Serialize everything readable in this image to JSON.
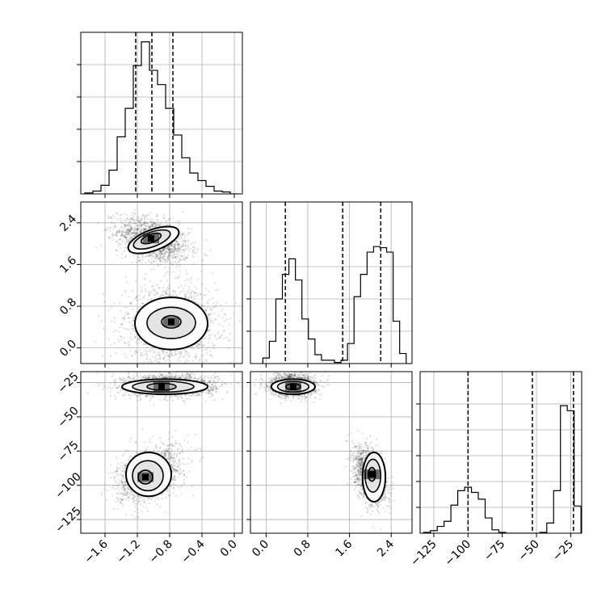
{
  "chart_data": {
    "type": "corner",
    "variables": [
      {
        "range": [
          -1.9,
          0.1
        ],
        "ticks": [
          -1.6,
          -1.2,
          -0.8,
          -0.4,
          0.0
        ],
        "tick_labels": [
          "−1.6",
          "−1.2",
          "−0.8",
          "−0.4",
          "0.0"
        ],
        "quantiles": [
          -1.22,
          -1.02,
          -0.76
        ],
        "hist_x": [
          -1.8,
          -1.7,
          -1.6,
          -1.5,
          -1.4,
          -1.3,
          -1.2,
          -1.1,
          -1.0,
          -0.9,
          -0.8,
          -0.7,
          -0.6,
          -0.5,
          -0.4,
          -0.3,
          -0.2,
          -0.1,
          0.0
        ],
        "hist_counts": [
          1,
          3,
          9,
          25,
          60,
          90,
          135,
          160,
          130,
          115,
          90,
          62,
          38,
          22,
          14,
          8,
          3,
          2,
          0
        ],
        "hist_ylim": [
          0,
          170
        ],
        "hist_grid": [
          0.2,
          0.4,
          0.6,
          0.8
        ]
      },
      {
        "range": [
          -0.3,
          2.8
        ],
        "ticks": [
          0.0,
          0.8,
          1.6,
          2.4
        ],
        "tick_labels": [
          "0.0",
          "0.8",
          "1.6",
          "2.4"
        ],
        "quantiles": [
          0.37,
          1.47,
          2.2
        ],
        "hist_x": [
          0.0,
          0.125,
          0.25,
          0.375,
          0.5,
          0.625,
          0.75,
          0.875,
          1.0,
          1.125,
          1.25,
          1.375,
          1.5,
          1.625,
          1.75,
          1.875,
          2.0,
          2.125,
          2.25,
          2.375,
          2.5,
          2.625
        ],
        "hist_counts": [
          5,
          20,
          58,
          80,
          94,
          75,
          40,
          22,
          8,
          3,
          3,
          1,
          3,
          18,
          60,
          80,
          100,
          105,
          104,
          100,
          38,
          9
        ],
        "hist_ylim": [
          0,
          145
        ],
        "hist_grid": [
          0.2,
          0.4,
          0.6
        ]
      },
      {
        "range": [
          -135,
          -17
        ],
        "ticks": [
          -125,
          -100,
          -75,
          -50,
          -25
        ],
        "tick_labels": [
          "−125",
          "−100",
          "−75",
          "−50",
          "−25"
        ],
        "quantiles": [
          -100,
          -53,
          -23
        ],
        "hist_x": [
          -130,
          -125,
          -120,
          -115,
          -110,
          -105,
          -100,
          -95,
          -90,
          -85,
          -80,
          -75,
          -70,
          -65,
          -60,
          -55,
          -50,
          -45,
          -40,
          -35,
          -30,
          -25,
          -20
        ],
        "hist_counts": [
          1,
          3,
          8,
          14,
          33,
          50,
          54,
          48,
          40,
          18,
          4,
          1,
          0,
          0,
          0,
          0,
          0,
          1,
          12,
          50,
          150,
          144,
          32
        ],
        "hist_ylim": [
          0,
          190
        ],
        "hist_grid": [
          0.16,
          0.32,
          0.48,
          0.64,
          0.8
        ]
      }
    ],
    "pairs": [
      {
        "row": 1,
        "col": 0,
        "clusters": [
          {
            "cx": -1.0,
            "cy": 2.07,
            "sx": 0.22,
            "sy": 0.22,
            "rho": -0.4,
            "n": 1600
          },
          {
            "cx": -0.78,
            "cy": 0.45,
            "sx": 0.28,
            "sy": 0.35,
            "rho": 0.0,
            "n": 1800
          }
        ],
        "contours": [
          {
            "cx": -1.0,
            "cy": 2.07,
            "rx": 0.33,
            "ry": 0.2,
            "rot": -0.35
          },
          {
            "cx": -1.02,
            "cy": 2.08,
            "rx": 0.24,
            "ry": 0.14,
            "rot": -0.35
          },
          {
            "cx": -1.03,
            "cy": 2.1,
            "rx": 0.13,
            "ry": 0.08,
            "rot": -0.35
          },
          {
            "cx": -0.78,
            "cy": 0.47,
            "rx": 0.45,
            "ry": 0.5,
            "rot": 0.0
          },
          {
            "cx": -0.78,
            "cy": 0.48,
            "rx": 0.3,
            "ry": 0.3,
            "rot": 0.0
          },
          {
            "cx": -0.78,
            "cy": 0.5,
            "rx": 0.12,
            "ry": 0.12,
            "rot": 0.0
          }
        ]
      },
      {
        "row": 2,
        "col": 0,
        "clusters": [
          {
            "cx": -0.8,
            "cy": -27,
            "sx": 0.28,
            "sy": 4,
            "rho": 0.0,
            "n": 1800
          },
          {
            "cx": -1.05,
            "cy": -92,
            "sx": 0.2,
            "sy": 10,
            "rho": 0.4,
            "n": 1600
          }
        ],
        "contours": [
          {
            "cx": -0.86,
            "cy": -28,
            "rx": 0.53,
            "ry": 5.5,
            "rot": 0.0
          },
          {
            "cx": -0.88,
            "cy": -28,
            "rx": 0.38,
            "ry": 4,
            "rot": 0.0
          },
          {
            "cx": -0.9,
            "cy": -28,
            "rx": 0.18,
            "ry": 2.5,
            "rot": 0.0
          },
          {
            "cx": -1.06,
            "cy": -92,
            "rx": 0.28,
            "ry": 16,
            "rot": 0.0
          },
          {
            "cx": -1.07,
            "cy": -93,
            "rx": 0.19,
            "ry": 11,
            "rot": 0.0
          },
          {
            "cx": -1.1,
            "cy": -94,
            "rx": 0.09,
            "ry": 5,
            "rot": 0.0
          }
        ]
      },
      {
        "row": 2,
        "col": 1,
        "clusters": [
          {
            "cx": 0.5,
            "cy": -27,
            "sx": 0.22,
            "sy": 4,
            "rho": 0.0,
            "n": 1600
          },
          {
            "cx": 2.0,
            "cy": -93,
            "sx": 0.15,
            "sy": 10,
            "rho": -0.4,
            "n": 1600
          }
        ],
        "contours": [
          {
            "cx": 0.52,
            "cy": -28,
            "rx": 0.42,
            "ry": 5.5,
            "rot": 0.0
          },
          {
            "cx": 0.52,
            "cy": -28,
            "rx": 0.3,
            "ry": 4,
            "rot": 0.0
          },
          {
            "cx": 0.52,
            "cy": -28,
            "rx": 0.14,
            "ry": 2.2,
            "rot": 0.0
          },
          {
            "cx": 2.07,
            "cy": -94,
            "rx": 0.22,
            "ry": 18,
            "rot": 0.0
          },
          {
            "cx": 2.05,
            "cy": -93,
            "rx": 0.15,
            "ry": 12,
            "rot": 0.0
          },
          {
            "cx": 2.03,
            "cy": -92,
            "rx": 0.07,
            "ry": 5,
            "rot": 0.0
          }
        ]
      }
    ],
    "grid": true,
    "colors": {
      "line": "#000000",
      "grid": "#b0b0b0",
      "points": "#000000",
      "fill_dark": "#000000"
    }
  }
}
